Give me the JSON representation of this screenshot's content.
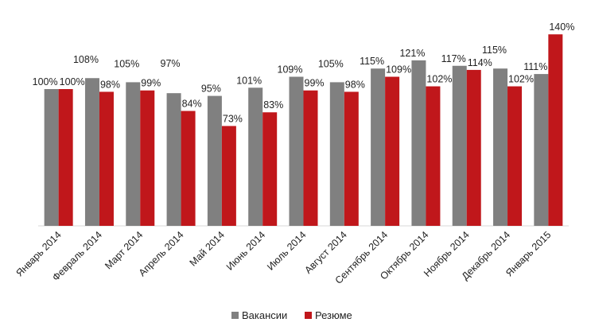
{
  "chart_data": {
    "type": "bar",
    "categories": [
      "Январь 2014",
      "Февраль 2014",
      "Март 2014",
      "Апрель 2014",
      "Май 2014",
      "Июнь 2014",
      "Июль 2014",
      "Август 2014",
      "Сентябрь 2014",
      "Октябрь 2014",
      "Ноябрь 2014",
      "Декабрь 2014",
      "Январь 2015"
    ],
    "series": [
      {
        "name": "Вакансии",
        "color": "#808080",
        "values": [
          100,
          108,
          105,
          97,
          95,
          101,
          109,
          105,
          115,
          121,
          117,
          115,
          111
        ]
      },
      {
        "name": "Резюме",
        "color": "#C0171B",
        "values": [
          100,
          98,
          99,
          84,
          73,
          83,
          99,
          98,
          109,
          102,
          114,
          102,
          140
        ]
      }
    ],
    "value_suffix": "%",
    "ylim": [
      0,
      140
    ],
    "grid": false,
    "legend": "bottom",
    "title": "",
    "xlabel": "",
    "ylabel": ""
  }
}
